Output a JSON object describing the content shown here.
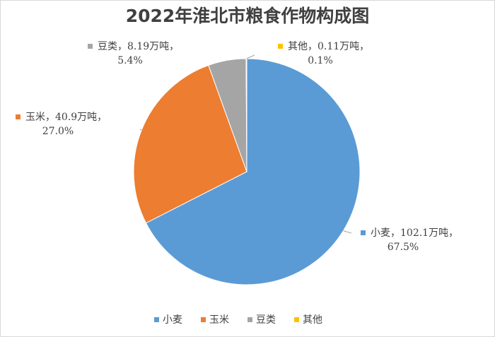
{
  "chart_data": {
    "type": "pie",
    "title": "2022年淮北市粮食作物构成图",
    "categories": [
      "小麦",
      "玉米",
      "豆类",
      "其他"
    ],
    "values": [
      67.5,
      27.0,
      5.4,
      0.1
    ],
    "value_labels": [
      "67.5%",
      "27.0%",
      "5.4%",
      "0.1%"
    ],
    "amounts": [
      102.1,
      40.9,
      8.19,
      0.11
    ],
    "amount_labels": [
      "102.1万吨",
      "40.9万吨",
      "8.19万吨",
      "0.11万吨"
    ],
    "label_separator": "，",
    "colors": [
      "#5b9bd5",
      "#ed7d31",
      "#a5a5a5",
      "#ffc000"
    ],
    "legend": "bottom"
  }
}
